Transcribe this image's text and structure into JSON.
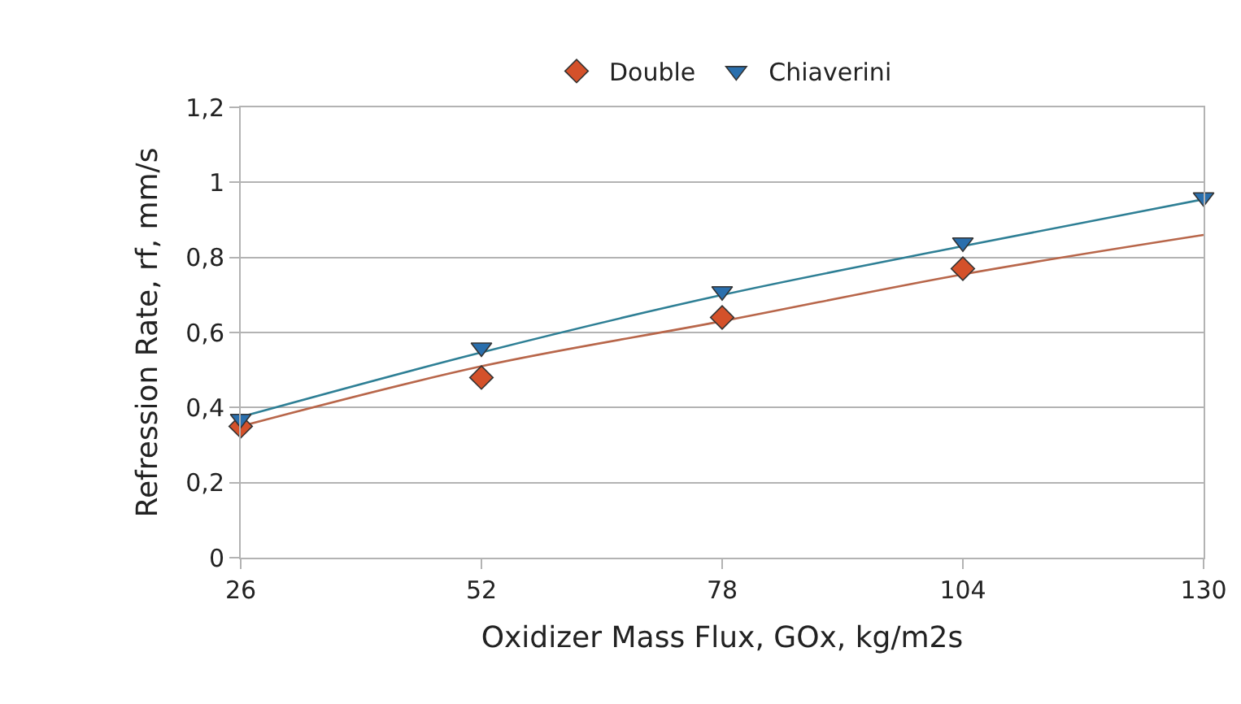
{
  "chart_data": {
    "type": "scatter",
    "xlabel": "Oxidizer Mass Flux, GOx, kg/m2s",
    "ylabel": "Refression Rate, rf, mm/s",
    "x": [
      26,
      52,
      78,
      104,
      130
    ],
    "series": [
      {
        "name": "Double",
        "color": "#d4512a",
        "marker": "diamond",
        "values": [
          0.35,
          0.48,
          0.64,
          0.77,
          null
        ]
      },
      {
        "name": "Chiaverini",
        "color": "#2a6fad",
        "marker": "triangle",
        "values": [
          0.37,
          0.56,
          0.71,
          0.84,
          0.96
        ]
      },
      {
        "type": "line",
        "color": "#b8664a",
        "marker": "none",
        "values": [
          0.35,
          0.51,
          0.63,
          0.755,
          0.86
        ]
      },
      {
        "type": "line",
        "color": "#2e7f95",
        "marker": "none",
        "values": [
          0.375,
          0.547,
          0.7,
          0.83,
          0.955
        ]
      }
    ],
    "xlim": [
      26,
      130
    ],
    "xticks": [
      26,
      52,
      78,
      104,
      130
    ],
    "ylim": [
      0,
      1.2
    ],
    "yticks": [
      0,
      {
        "value": 0.2,
        "label": "0,2"
      },
      {
        "value": 0.4,
        "label": "0,4"
      },
      {
        "value": 0.6,
        "label": "0,6"
      },
      {
        "value": 0.8,
        "label": "0,8"
      },
      1,
      {
        "value": 1.2,
        "label": "1,2"
      }
    ],
    "grid": "y",
    "legend": "top"
  }
}
